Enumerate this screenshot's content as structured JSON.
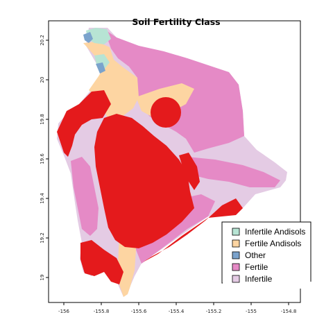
{
  "map": {
    "title": "Soil Fertility Class",
    "x_ticks": [
      "-156",
      "-155.8",
      "-155.6",
      "-155.4",
      "-155.2",
      "-155",
      "-154.8"
    ],
    "y_ticks": [
      "19",
      "19.2",
      "19.4",
      "19.6",
      "19.8",
      "20",
      "20.2"
    ],
    "legend": {
      "placement": "bottom-right",
      "items": [
        {
          "label": "Infertile Andisols",
          "color": "#b7e4d4"
        },
        {
          "label": "Fertile Andisols",
          "color": "#fdd5a2"
        },
        {
          "label": "Other",
          "color": "#7ba3cc"
        },
        {
          "label": "Fertile",
          "color": "#e58ac6"
        },
        {
          "label": "Infertile",
          "color": "#e4cbe4"
        }
      ]
    },
    "colors": {
      "red_class": "#e41a1c",
      "fertile": "#e58ac6",
      "infertile": "#e4cbe4",
      "fertile_andisols": "#fdd5a2",
      "infertile_andisols": "#b7e4d4",
      "other": "#7ba3cc"
    }
  }
}
